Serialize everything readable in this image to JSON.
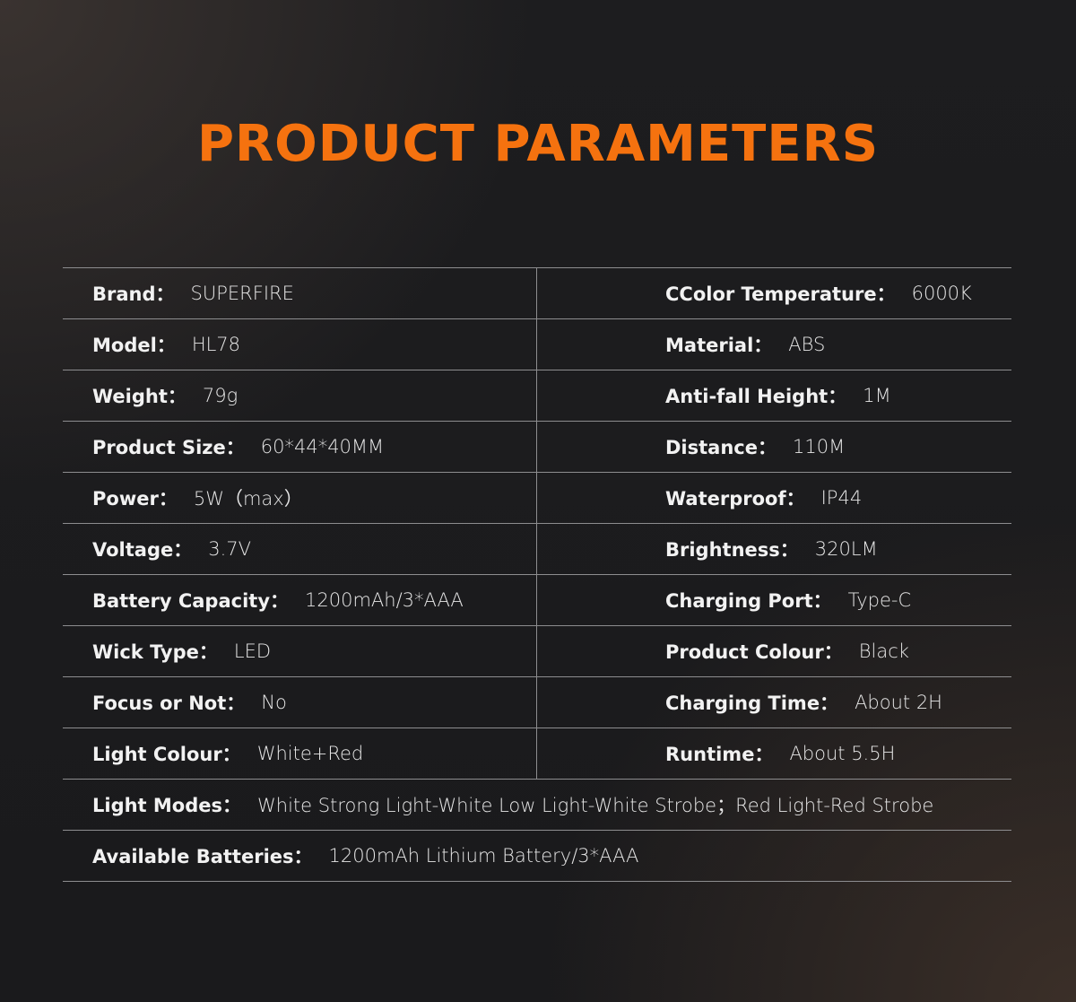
{
  "title": "PRODUCT PARAMETERS",
  "rows": [
    {
      "left": {
        "label": "Brand：",
        "value": "SUPERFIRE"
      },
      "right": {
        "label": "CColor Temperature：",
        "value": "6000K"
      }
    },
    {
      "left": {
        "label": "Model：",
        "value": "HL78"
      },
      "right": {
        "label": "Material：",
        "value": "ABS"
      }
    },
    {
      "left": {
        "label": "Weight：",
        "value": "79g"
      },
      "right": {
        "label": "Anti-fall Height：",
        "value": "1M"
      }
    },
    {
      "left": {
        "label": "Product Size：",
        "value": "60*44*40MM"
      },
      "right": {
        "label": "Distance：",
        "value": "110M"
      }
    },
    {
      "left": {
        "label": "Power：",
        "value": "5W（max）"
      },
      "right": {
        "label": "Waterproof：",
        "value": "IP44"
      }
    },
    {
      "left": {
        "label": "Voltage：",
        "value": "3.7V"
      },
      "right": {
        "label": "Brightness：",
        "value": "320LM"
      }
    },
    {
      "left": {
        "label": "Battery Capacity：",
        "value": "1200mAh/3*AAA"
      },
      "right": {
        "label": "Charging Port：",
        "value": "Type-C"
      }
    },
    {
      "left": {
        "label": "Wick Type：",
        "value": "LED"
      },
      "right": {
        "label": "Product Colour：",
        "value": "Black"
      }
    },
    {
      "left": {
        "label": "Focus or Not：",
        "value": "No"
      },
      "right": {
        "label": "Charging Time：",
        "value": "About 2H"
      }
    },
    {
      "left": {
        "label": "Light Colour：",
        "value": "White+Red"
      },
      "right": {
        "label": "Runtime：",
        "value": "About 5.5H"
      }
    }
  ],
  "full_rows": [
    {
      "label": "Light Modes：",
      "value": "White Strong Light-White Low Light-White Strobe；Red Light-Red Strobe"
    },
    {
      "label": "Available Batteries：",
      "value": "1200mAh Lithium Battery/3*AAA"
    }
  ],
  "colors": {
    "accent": "#f5720f",
    "background": "#1c1c1e"
  }
}
